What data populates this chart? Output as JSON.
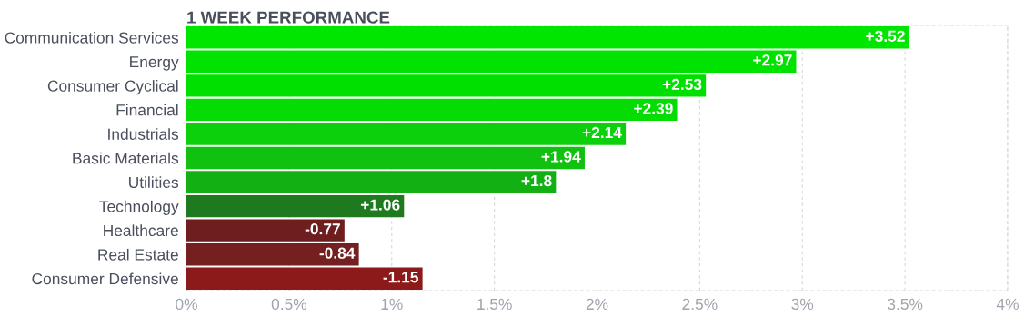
{
  "chart_data": {
    "type": "bar",
    "orientation": "horizontal",
    "title": "1 WEEK PERFORMANCE",
    "categories": [
      "Communication Services",
      "Energy",
      "Consumer Cyclical",
      "Financial",
      "Industrials",
      "Basic Materials",
      "Utilities",
      "Technology",
      "Healthcare",
      "Real Estate",
      "Consumer Defensive"
    ],
    "values": [
      3.52,
      2.97,
      2.53,
      2.39,
      2.14,
      1.94,
      1.8,
      1.06,
      -0.77,
      -0.84,
      -1.15
    ],
    "base": [
      0,
      0,
      0,
      0,
      0,
      0,
      0,
      0,
      0.77,
      0.84,
      1.15
    ],
    "value_labels": [
      "+3.52",
      "+2.97",
      "+2.53",
      "+2.39",
      "+2.14",
      "+1.94",
      "+1.8",
      "+1.06",
      "-0.77",
      "-0.84",
      "-1.15"
    ],
    "colors": [
      "#00e600",
      "#00e300",
      "#00e000",
      "#04dc04",
      "#0bd00b",
      "#10c110",
      "#13b013",
      "#1f7a1f",
      "#6e1e1e",
      "#742020",
      "#8c1a1a"
    ],
    "xlim": [
      0,
      4
    ],
    "xticks": [
      {
        "value": 0,
        "label": "0%"
      },
      {
        "value": 0.5,
        "label": "0.5%"
      },
      {
        "value": 1,
        "label": "1%"
      },
      {
        "value": 1.5,
        "label": "1.5%"
      },
      {
        "value": 2,
        "label": "2%"
      },
      {
        "value": 2.5,
        "label": "2.5%"
      },
      {
        "value": 3,
        "label": "3%"
      },
      {
        "value": 3.5,
        "label": "3.5%"
      },
      {
        "value": 4,
        "label": "4%"
      }
    ],
    "grid": "x",
    "legend": false
  }
}
